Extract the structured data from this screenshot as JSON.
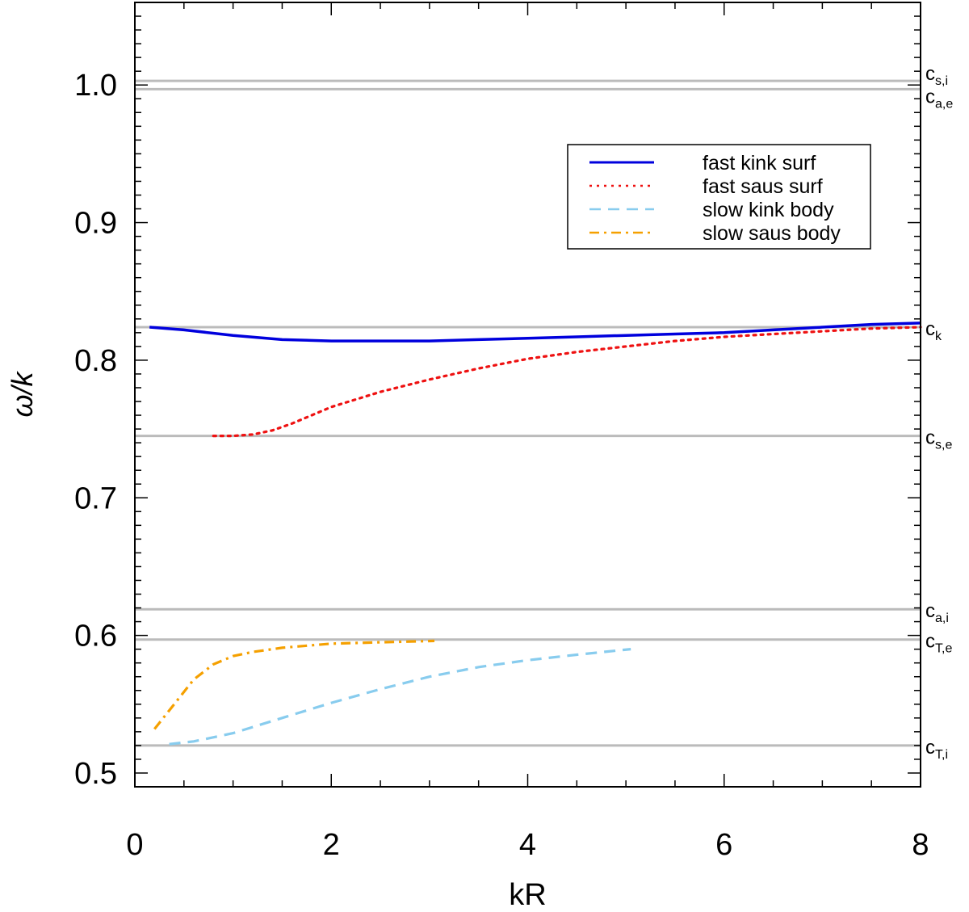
{
  "chart_data": {
    "type": "line",
    "xlabel": "kR",
    "ylabel": "ω/k",
    "xlim": [
      0,
      8
    ],
    "ylim": [
      0.49,
      1.06
    ],
    "x_ticks": [
      0,
      2,
      4,
      6,
      8
    ],
    "x_tick_labels": [
      "0",
      "2",
      "4",
      "6",
      "8"
    ],
    "y_ticks": [
      0.5,
      0.6,
      0.7,
      0.8,
      0.9,
      1.0
    ],
    "y_tick_labels": [
      "0.5",
      "0.6",
      "0.7",
      "0.8",
      "0.9",
      "1.0"
    ],
    "grid": false,
    "legend_position": "top-right",
    "reference_lines": [
      {
        "id": "cs_i",
        "base": "c",
        "sub": "s,i",
        "y": 1.003,
        "color": "#bbbbbb"
      },
      {
        "id": "ca_e",
        "base": "c",
        "sub": "a,e",
        "y": 0.997,
        "color": "#bbbbbb"
      },
      {
        "id": "ck",
        "base": "c",
        "sub": "k",
        "y": 0.824,
        "color": "#bbbbbb"
      },
      {
        "id": "cs_e",
        "base": "c",
        "sub": "s,e",
        "y": 0.745,
        "color": "#bbbbbb"
      },
      {
        "id": "ca_i",
        "base": "c",
        "sub": "a,i",
        "y": 0.619,
        "color": "#bbbbbb"
      },
      {
        "id": "cT_e",
        "base": "c",
        "sub": "T,e",
        "y": 0.597,
        "color": "#bbbbbb"
      },
      {
        "id": "cT_i",
        "base": "c",
        "sub": "T,i",
        "y": 0.52,
        "color": "#bbbbbb"
      }
    ],
    "series": [
      {
        "name": "fast kink surf",
        "color": "#0000dd",
        "style": "solid",
        "x": [
          0.15,
          0.5,
          1.0,
          1.5,
          2.0,
          2.5,
          3.0,
          3.5,
          4.0,
          4.5,
          5.0,
          5.5,
          6.0,
          6.5,
          7.0,
          7.5,
          8.0
        ],
        "y": [
          0.824,
          0.822,
          0.818,
          0.815,
          0.814,
          0.814,
          0.814,
          0.815,
          0.816,
          0.817,
          0.818,
          0.819,
          0.82,
          0.822,
          0.824,
          0.826,
          0.827
        ]
      },
      {
        "name": "fast saus surf",
        "color": "#ee1111",
        "style": "dotted",
        "x": [
          0.8,
          1.0,
          1.2,
          1.4,
          1.6,
          1.8,
          2.0,
          2.5,
          3.0,
          3.5,
          4.0,
          4.5,
          5.0,
          5.5,
          6.0,
          6.5,
          7.0,
          7.5,
          8.0
        ],
        "y": [
          0.745,
          0.745,
          0.746,
          0.749,
          0.754,
          0.76,
          0.766,
          0.777,
          0.786,
          0.794,
          0.801,
          0.806,
          0.81,
          0.814,
          0.817,
          0.819,
          0.821,
          0.823,
          0.824
        ]
      },
      {
        "name": "slow kink body",
        "color": "#88ccee",
        "style": "dashed",
        "x": [
          0.35,
          0.6,
          1.0,
          1.5,
          2.0,
          2.5,
          3.0,
          3.5,
          4.0,
          4.5,
          5.05
        ],
        "y": [
          0.521,
          0.523,
          0.529,
          0.54,
          0.551,
          0.561,
          0.57,
          0.577,
          0.582,
          0.586,
          0.59
        ]
      },
      {
        "name": "slow saus body",
        "color": "#f5a000",
        "style": "dashdot",
        "x": [
          0.2,
          0.4,
          0.6,
          0.8,
          1.0,
          1.2,
          1.5,
          2.0,
          2.5,
          3.05
        ],
        "y": [
          0.532,
          0.55,
          0.568,
          0.579,
          0.585,
          0.588,
          0.591,
          0.594,
          0.595,
          0.596
        ]
      }
    ]
  }
}
